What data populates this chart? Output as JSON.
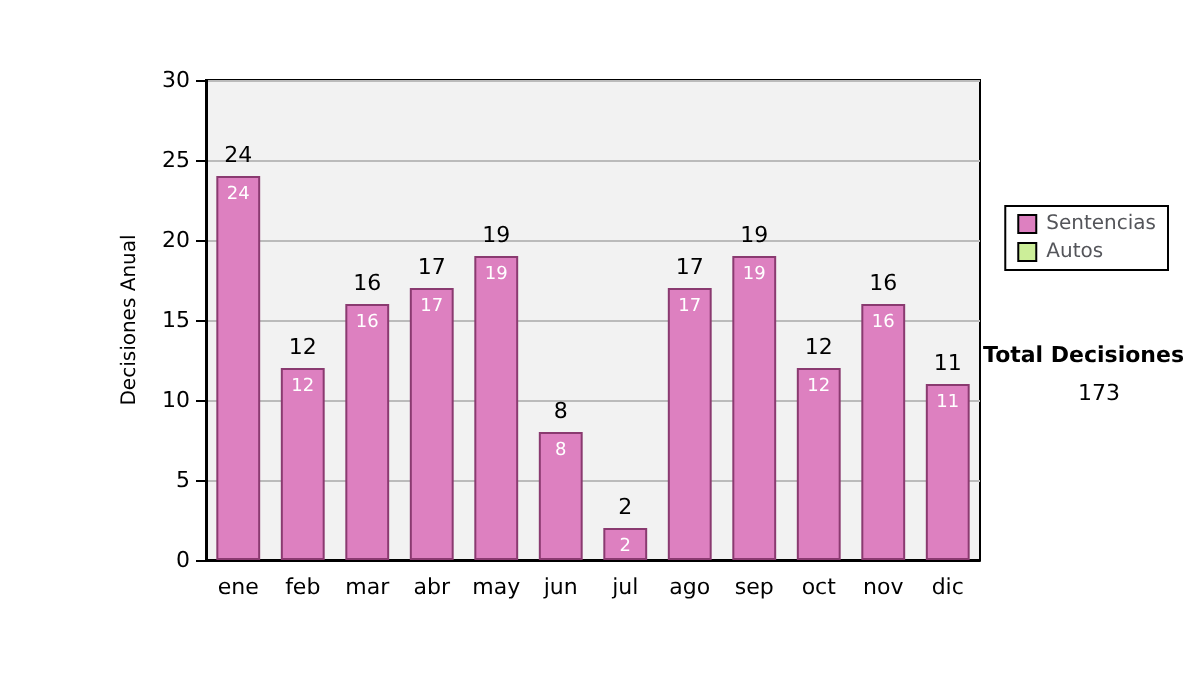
{
  "chart_data": {
    "type": "bar",
    "ylabel": "Decisiones Anual",
    "categories": [
      "ene",
      "feb",
      "mar",
      "abr",
      "may",
      "jun",
      "jul",
      "ago",
      "sep",
      "oct",
      "nov",
      "dic"
    ],
    "series": [
      {
        "name": "Sentencias",
        "color": "#dd80c0",
        "values": [
          24,
          12,
          16,
          17,
          19,
          8,
          2,
          17,
          19,
          12,
          16,
          11
        ],
        "value_labels": [
          "24",
          "12",
          "16",
          "17",
          "19",
          "8",
          "2",
          "17",
          "19",
          "12",
          "16",
          "11"
        ]
      },
      {
        "name": "Autos",
        "color": "#ccee99",
        "values": [
          0,
          0,
          0,
          0,
          0,
          0,
          0,
          0,
          0,
          0,
          0,
          0
        ]
      }
    ],
    "stacked": true,
    "totals": [
      "24",
      "12",
      "16",
      "17",
      "19",
      "8",
      "2",
      "17",
      "19",
      "12",
      "16",
      "11"
    ],
    "ylim": [
      0,
      30
    ],
    "yticks": [
      0,
      5,
      10,
      15,
      20,
      25,
      30
    ],
    "grid": "y",
    "legend": "right",
    "annotations": [
      "Total Decisiones",
      "173"
    ]
  }
}
